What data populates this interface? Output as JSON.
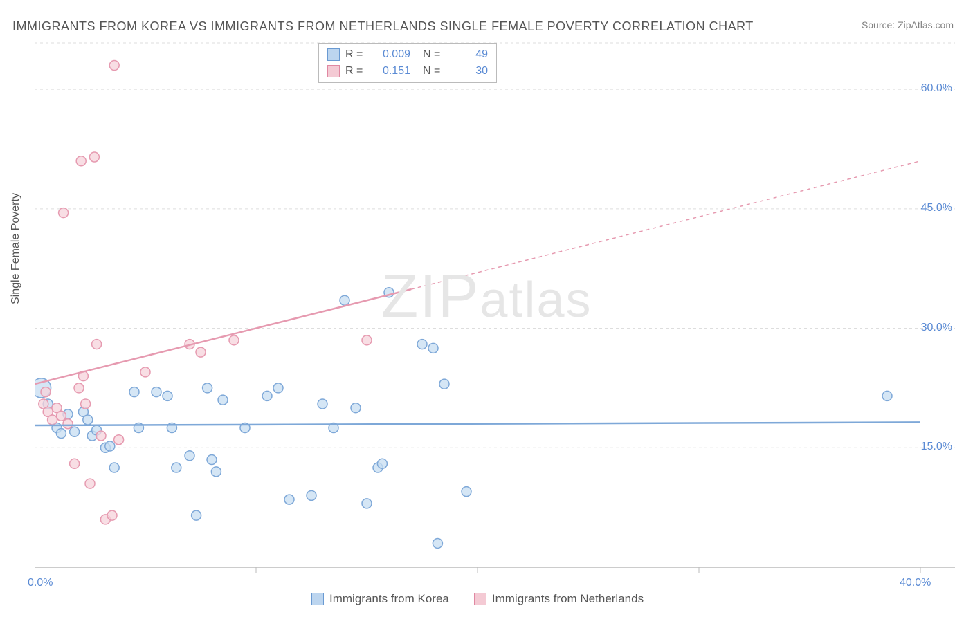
{
  "title": "IMMIGRANTS FROM KOREA VS IMMIGRANTS FROM NETHERLANDS SINGLE FEMALE POVERTY CORRELATION CHART",
  "source": "Source: ZipAtlas.com",
  "y_axis_label": "Single Female Poverty",
  "watermark": "ZIPatlas",
  "chart": {
    "type": "scatter",
    "xlim": [
      0,
      40
    ],
    "ylim": [
      0,
      66
    ],
    "x_ticks": [
      0,
      10,
      20,
      30,
      40
    ],
    "x_tick_labels": [
      "0.0%",
      "",
      "",
      "",
      "40.0%"
    ],
    "y_ticks": [
      15,
      30,
      45,
      60
    ],
    "y_tick_labels": [
      "15.0%",
      "30.0%",
      "45.0%",
      "60.0%"
    ],
    "grid_color": "#dddddd",
    "axis_color": "#bbbbbb",
    "background_color": "#ffffff",
    "series": [
      {
        "name": "Immigrants from Korea",
        "fill": "#c7ddf2",
        "stroke": "#7ea8d8",
        "swatch_fill": "#bcd5ef",
        "swatch_stroke": "#6a9ad2",
        "R": "0.009",
        "N": "49",
        "trend": {
          "y_at_x0": 17.8,
          "y_at_x40": 18.2,
          "solid_until": 40
        },
        "points": [
          {
            "x": 0.3,
            "y": 22.5,
            "r": 14
          },
          {
            "x": 0.6,
            "y": 20.5,
            "r": 7
          },
          {
            "x": 1.0,
            "y": 17.5,
            "r": 7
          },
          {
            "x": 1.2,
            "y": 16.8,
            "r": 7
          },
          {
            "x": 1.5,
            "y": 19.2,
            "r": 7
          },
          {
            "x": 1.8,
            "y": 17.0,
            "r": 7
          },
          {
            "x": 2.2,
            "y": 19.5,
            "r": 7
          },
          {
            "x": 2.4,
            "y": 18.5,
            "r": 7
          },
          {
            "x": 2.6,
            "y": 16.5,
            "r": 7
          },
          {
            "x": 2.8,
            "y": 17.2,
            "r": 7
          },
          {
            "x": 3.2,
            "y": 15.0,
            "r": 7
          },
          {
            "x": 3.4,
            "y": 15.2,
            "r": 7
          },
          {
            "x": 3.6,
            "y": 12.5,
            "r": 7
          },
          {
            "x": 4.5,
            "y": 22.0,
            "r": 7
          },
          {
            "x": 4.7,
            "y": 17.5,
            "r": 7
          },
          {
            "x": 5.5,
            "y": 22.0,
            "r": 7
          },
          {
            "x": 6.0,
            "y": 21.5,
            "r": 7
          },
          {
            "x": 6.2,
            "y": 17.5,
            "r": 7
          },
          {
            "x": 6.4,
            "y": 12.5,
            "r": 7
          },
          {
            "x": 7.0,
            "y": 14.0,
            "r": 7
          },
          {
            "x": 7.3,
            "y": 6.5,
            "r": 7
          },
          {
            "x": 7.8,
            "y": 22.5,
            "r": 7
          },
          {
            "x": 8.0,
            "y": 13.5,
            "r": 7
          },
          {
            "x": 8.2,
            "y": 12.0,
            "r": 7
          },
          {
            "x": 8.5,
            "y": 21.0,
            "r": 7
          },
          {
            "x": 9.5,
            "y": 17.5,
            "r": 7
          },
          {
            "x": 10.5,
            "y": 21.5,
            "r": 7
          },
          {
            "x": 11.0,
            "y": 22.5,
            "r": 7
          },
          {
            "x": 11.5,
            "y": 8.5,
            "r": 7
          },
          {
            "x": 12.5,
            "y": 9.0,
            "r": 7
          },
          {
            "x": 13.0,
            "y": 20.5,
            "r": 7
          },
          {
            "x": 13.5,
            "y": 17.5,
            "r": 7
          },
          {
            "x": 14.0,
            "y": 33.5,
            "r": 7
          },
          {
            "x": 14.5,
            "y": 20.0,
            "r": 7
          },
          {
            "x": 15.0,
            "y": 8.0,
            "r": 7
          },
          {
            "x": 15.5,
            "y": 12.5,
            "r": 7
          },
          {
            "x": 15.7,
            "y": 13.0,
            "r": 7
          },
          {
            "x": 16.0,
            "y": 34.5,
            "r": 7
          },
          {
            "x": 17.5,
            "y": 28.0,
            "r": 7
          },
          {
            "x": 18.0,
            "y": 27.5,
            "r": 7
          },
          {
            "x": 18.2,
            "y": 3.0,
            "r": 7
          },
          {
            "x": 18.5,
            "y": 23.0,
            "r": 7
          },
          {
            "x": 19.5,
            "y": 9.5,
            "r": 7
          },
          {
            "x": 38.5,
            "y": 21.5,
            "r": 7
          }
        ]
      },
      {
        "name": "Immigrants from Netherlands",
        "fill": "#f6d3db",
        "stroke": "#e69ab0",
        "swatch_fill": "#f4cad4",
        "swatch_stroke": "#e088a2",
        "R": "0.151",
        "N": "30",
        "trend": {
          "y_at_x0": 23.0,
          "y_at_x40": 51.0,
          "solid_until": 17
        },
        "points": [
          {
            "x": 0.4,
            "y": 20.5,
            "r": 7
          },
          {
            "x": 0.5,
            "y": 22.0,
            "r": 7
          },
          {
            "x": 0.6,
            "y": 19.5,
            "r": 7
          },
          {
            "x": 0.8,
            "y": 18.5,
            "r": 7
          },
          {
            "x": 1.0,
            "y": 20.0,
            "r": 7
          },
          {
            "x": 1.2,
            "y": 19.0,
            "r": 7
          },
          {
            "x": 1.3,
            "y": 44.5,
            "r": 7
          },
          {
            "x": 1.5,
            "y": 18.0,
            "r": 7
          },
          {
            "x": 1.8,
            "y": 13.0,
            "r": 7
          },
          {
            "x": 2.0,
            "y": 22.5,
            "r": 7
          },
          {
            "x": 2.1,
            "y": 51.0,
            "r": 7
          },
          {
            "x": 2.2,
            "y": 24.0,
            "r": 7
          },
          {
            "x": 2.3,
            "y": 20.5,
            "r": 7
          },
          {
            "x": 2.5,
            "y": 10.5,
            "r": 7
          },
          {
            "x": 2.7,
            "y": 51.5,
            "r": 7
          },
          {
            "x": 2.8,
            "y": 28.0,
            "r": 7
          },
          {
            "x": 3.0,
            "y": 16.5,
            "r": 7
          },
          {
            "x": 3.2,
            "y": 6.0,
            "r": 7
          },
          {
            "x": 3.5,
            "y": 6.5,
            "r": 7
          },
          {
            "x": 3.6,
            "y": 63.0,
            "r": 7
          },
          {
            "x": 3.8,
            "y": 16.0,
            "r": 7
          },
          {
            "x": 5.0,
            "y": 24.5,
            "r": 7
          },
          {
            "x": 7.0,
            "y": 28.0,
            "r": 7
          },
          {
            "x": 7.5,
            "y": 27.0,
            "r": 7
          },
          {
            "x": 9.0,
            "y": 28.5,
            "r": 7
          },
          {
            "x": 15.0,
            "y": 28.5,
            "r": 7
          }
        ]
      }
    ]
  },
  "legend_top_labels": {
    "R": "R =",
    "N": "N ="
  },
  "legend_bottom": [
    {
      "label": "Immigrants from Korea",
      "series": 0
    },
    {
      "label": "Immigrants from Netherlands",
      "series": 1
    }
  ]
}
